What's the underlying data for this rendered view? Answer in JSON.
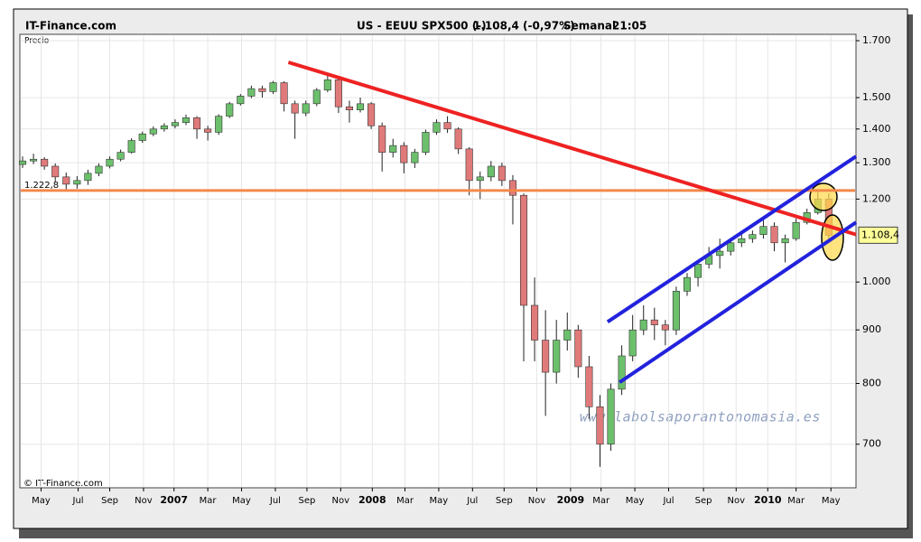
{
  "header": {
    "brand": "IT-Finance.com",
    "instrument": "US - EEUU SPX500 (-)",
    "quote": "1.108,4 (-0,97%)",
    "period": "Semanal",
    "time": "21:05"
  },
  "chart_data": {
    "type": "candlestick",
    "y_label": "Precio",
    "footer": "© IT-Finance.com",
    "watermark": "www.labolsaporantonomasia.es",
    "log_scale": true,
    "grid": true,
    "up_color": "#6cc06c",
    "down_color": "#e07a7a",
    "ylim": [
      636,
      1724
    ],
    "yticks": [
      {
        "value": 700,
        "label": "700"
      },
      {
        "value": 800,
        "label": "800"
      },
      {
        "value": 900,
        "label": "900"
      },
      {
        "value": 1000,
        "label": "1.000"
      },
      {
        "value": 1200,
        "label": "1.200"
      },
      {
        "value": 1300,
        "label": "1.300"
      },
      {
        "value": 1400,
        "label": "1.400"
      },
      {
        "value": 1500,
        "label": "1.500"
      },
      {
        "value": 1700,
        "label": "1.700"
      }
    ],
    "xlim": [
      -0.25,
      76.5
    ],
    "xticks": [
      {
        "value": 1.7,
        "label": "May"
      },
      {
        "value": 5.1,
        "label": "Jul"
      },
      {
        "value": 8.0,
        "label": "Sep"
      },
      {
        "value": 11.1,
        "label": "Nov"
      },
      {
        "value": 13.9,
        "label": "2007"
      },
      {
        "value": 17.0,
        "label": "Mar"
      },
      {
        "value": 20.1,
        "label": "May"
      },
      {
        "value": 23.2,
        "label": "Jul"
      },
      {
        "value": 26.1,
        "label": "Sep"
      },
      {
        "value": 29.2,
        "label": "Nov"
      },
      {
        "value": 32.1,
        "label": "2008"
      },
      {
        "value": 35.1,
        "label": "Mar"
      },
      {
        "value": 38.2,
        "label": "May"
      },
      {
        "value": 41.3,
        "label": "Jul"
      },
      {
        "value": 44.2,
        "label": "Sep"
      },
      {
        "value": 47.2,
        "label": "Nov"
      },
      {
        "value": 50.3,
        "label": "2009"
      },
      {
        "value": 53.1,
        "label": "Mar"
      },
      {
        "value": 56.2,
        "label": "May"
      },
      {
        "value": 59.3,
        "label": "Jul"
      },
      {
        "value": 62.5,
        "label": "Sep"
      },
      {
        "value": 65.5,
        "label": "Nov"
      },
      {
        "value": 68.4,
        "label": "2010"
      },
      {
        "value": 71.0,
        "label": "Mar"
      },
      {
        "value": 74.2,
        "label": "May"
      }
    ],
    "x": [
      0,
      1,
      2,
      3,
      4,
      5,
      6,
      7,
      8,
      9,
      10,
      11,
      12,
      13,
      14,
      15,
      16,
      17,
      18,
      19,
      20,
      21,
      22,
      23,
      24,
      25,
      26,
      27,
      28,
      29,
      30,
      31,
      32,
      33,
      34,
      35,
      36,
      37,
      38,
      39,
      40,
      41,
      42,
      43,
      44,
      45,
      46,
      47,
      48,
      49,
      50,
      51,
      52,
      53,
      54,
      55,
      56,
      57,
      58,
      59,
      60,
      61,
      62,
      63,
      64,
      65,
      66,
      67,
      68,
      69,
      70,
      71,
      72,
      73,
      74
    ],
    "open": [
      1295,
      1305,
      1310,
      1290,
      1260,
      1240,
      1250,
      1270,
      1290,
      1310,
      1330,
      1365,
      1385,
      1400,
      1410,
      1420,
      1435,
      1400,
      1390,
      1440,
      1480,
      1505,
      1530,
      1520,
      1550,
      1480,
      1450,
      1480,
      1525,
      1560,
      1470,
      1460,
      1480,
      1410,
      1330,
      1350,
      1300,
      1330,
      1390,
      1420,
      1400,
      1340,
      1250,
      1260,
      1290,
      1250,
      1210,
      950,
      880,
      820,
      880,
      900,
      830,
      760,
      700,
      790,
      850,
      900,
      920,
      910,
      900,
      980,
      1010,
      1040,
      1060,
      1070,
      1090,
      1100,
      1110,
      1130,
      1090,
      1100,
      1140,
      1165,
      1200
    ],
    "high": [
      1318,
      1326,
      1316,
      1298,
      1272,
      1262,
      1280,
      1298,
      1318,
      1338,
      1372,
      1392,
      1408,
      1418,
      1430,
      1445,
      1440,
      1410,
      1446,
      1486,
      1512,
      1540,
      1540,
      1556,
      1555,
      1490,
      1490,
      1532,
      1576,
      1565,
      1490,
      1500,
      1485,
      1420,
      1370,
      1360,
      1340,
      1398,
      1430,
      1440,
      1405,
      1345,
      1275,
      1305,
      1300,
      1265,
      1215,
      1010,
      940,
      920,
      935,
      910,
      850,
      780,
      800,
      870,
      930,
      950,
      945,
      920,
      990,
      1020,
      1050,
      1080,
      1100,
      1100,
      1115,
      1120,
      1150,
      1140,
      1110,
      1150,
      1175,
      1219,
      1215
    ],
    "low": [
      1285,
      1296,
      1280,
      1245,
      1225,
      1228,
      1238,
      1262,
      1284,
      1304,
      1326,
      1358,
      1378,
      1392,
      1402,
      1412,
      1370,
      1365,
      1382,
      1434,
      1474,
      1498,
      1500,
      1512,
      1455,
      1370,
      1440,
      1472,
      1518,
      1450,
      1420,
      1452,
      1400,
      1275,
      1315,
      1270,
      1285,
      1322,
      1382,
      1388,
      1325,
      1210,
      1200,
      1248,
      1235,
      1135,
      840,
      840,
      745,
      800,
      860,
      810,
      740,
      666,
      690,
      780,
      840,
      890,
      880,
      870,
      890,
      970,
      990,
      1030,
      1030,
      1060,
      1080,
      1090,
      1100,
      1070,
      1044,
      1095,
      1135,
      1160,
      1100
    ],
    "close": [
      1305,
      1310,
      1290,
      1260,
      1240,
      1250,
      1270,
      1290,
      1310,
      1330,
      1365,
      1385,
      1400,
      1410,
      1420,
      1435,
      1400,
      1390,
      1440,
      1480,
      1505,
      1530,
      1520,
      1550,
      1480,
      1450,
      1480,
      1525,
      1560,
      1470,
      1460,
      1480,
      1410,
      1330,
      1350,
      1300,
      1330,
      1390,
      1420,
      1400,
      1340,
      1250,
      1260,
      1290,
      1250,
      1210,
      950,
      880,
      820,
      880,
      900,
      830,
      760,
      700,
      790,
      850,
      900,
      920,
      910,
      900,
      980,
      1010,
      1040,
      1060,
      1070,
      1090,
      1100,
      1110,
      1130,
      1090,
      1100,
      1140,
      1165,
      1200,
      1108.4
    ],
    "last_value": 1108.4,
    "last_label": "1.108,4",
    "reference_line": {
      "value": 1222.8,
      "label": "1.222,8",
      "color": "#f4884a"
    },
    "trendlines": [
      {
        "color": "#ee2222",
        "x": [
          24.4,
          76.5
        ],
        "y": [
          1621,
          1110
        ]
      },
      {
        "color": "#2222dd",
        "x": [
          53.7,
          76.5
        ],
        "y": [
          916,
          1318
        ]
      },
      {
        "color": "#2222dd",
        "x": [
          54.8,
          76.5
        ],
        "y": [
          802,
          1140
        ]
      }
    ]
  }
}
